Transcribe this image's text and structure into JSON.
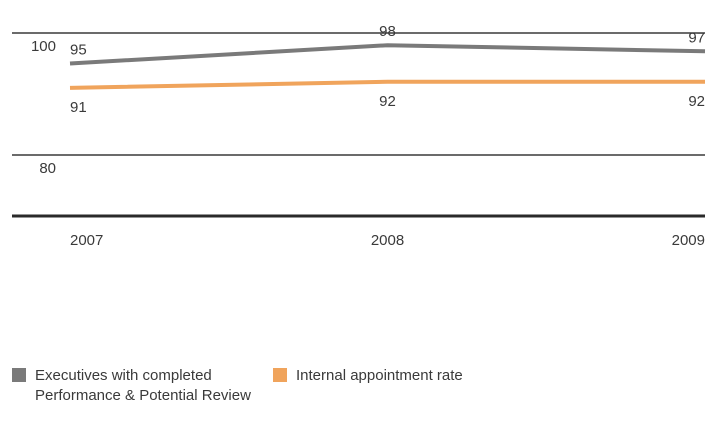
{
  "chart_data": {
    "type": "line",
    "x": [
      "2007",
      "2008",
      "2009"
    ],
    "ylim": [
      70,
      100
    ],
    "yticks": [
      80,
      100
    ],
    "grid": true,
    "legend_position": "bottom-left",
    "series": [
      {
        "name": "Executives with completed\nPerformance & Potential Review",
        "values": [
          95,
          98,
          97
        ],
        "color": "#7a7a7a"
      },
      {
        "name": "Internal appointment rate",
        "values": [
          91,
          92,
          92
        ],
        "color": "#f0a45c"
      }
    ]
  }
}
